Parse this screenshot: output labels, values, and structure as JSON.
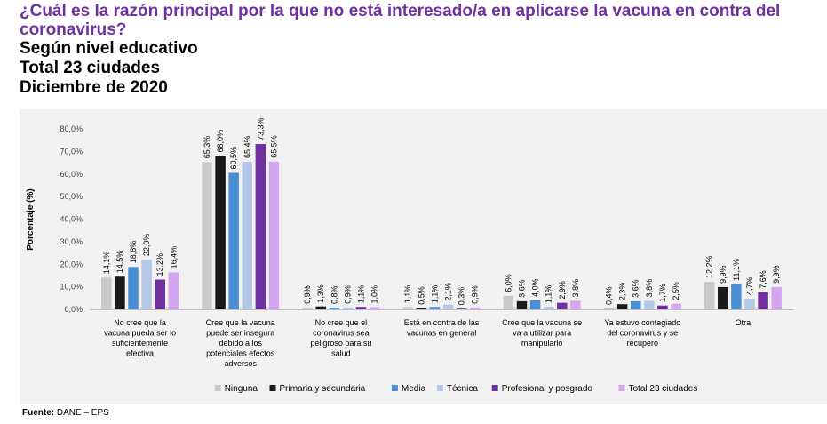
{
  "header": {
    "title": "¿Cuál es la razón principal por la que no está interesado/a en aplicarse la vacuna en contra del coronavirus?",
    "subtitle_lines": [
      "Según nivel educativo",
      "Total 23 ciudades",
      "Diciembre de 2020"
    ]
  },
  "footer": {
    "source_label": "Fuente:",
    "source_value": "DANE – EPS"
  },
  "chart_data": {
    "type": "bar",
    "ylabel": "Porcentaje (%)",
    "ylim": [
      0,
      80
    ],
    "yticks": [
      "0,0%",
      "10,0%",
      "20,0%",
      "30,0%",
      "40,0%",
      "50,0%",
      "60,0%",
      "70,0%",
      "80,0%"
    ],
    "grid": false,
    "legend_position": "bottom",
    "categories": [
      [
        "No cree que la",
        "vacuna pueda ser lo",
        "suficientemente",
        "efectiva"
      ],
      [
        "Cree que la vacuna",
        "puede ser insegura",
        "debido a los",
        "potenciales efectos",
        "adversos"
      ],
      [
        "No cree que el",
        "coronavirus sea",
        "peligroso para su",
        "salud"
      ],
      [
        "Está en contra de las",
        "vacunas en general"
      ],
      [
        "Cree que la vacuna se",
        "va a utilizar para",
        "manipularlo"
      ],
      [
        "Ya estuvo contagiado",
        "del coronavirus y se",
        "recuperó"
      ],
      [
        "Otra"
      ]
    ],
    "series": [
      {
        "name": "Ninguna",
        "color": "#c9c9c9",
        "values": [
          14.1,
          65.3,
          0.9,
          1.1,
          6.0,
          0.4,
          12.2
        ],
        "labels": [
          "14,1%",
          "65,3%",
          "0,9%",
          "1,1%",
          "6,0%",
          "0,4%",
          "12,2%"
        ]
      },
      {
        "name": "Primaria y secundaria",
        "color": "#1a1a1a",
        "values": [
          14.5,
          68.0,
          1.3,
          0.5,
          3.6,
          2.3,
          9.9
        ],
        "labels": [
          "14,5%",
          "68,0%",
          "1,3%",
          "0,5%",
          "3,6%",
          "2,3%",
          "9,9%"
        ]
      },
      {
        "name": "Media",
        "color": "#4a8fd4",
        "values": [
          18.8,
          60.5,
          0.8,
          1.1,
          4.0,
          3.6,
          11.1
        ],
        "labels": [
          "18,8%",
          "60,5%",
          "0,8%",
          "1,1%",
          "4,0%",
          "3,6%",
          "11,1%"
        ]
      },
      {
        "name": "Técnica",
        "color": "#b4c7e7",
        "values": [
          22.0,
          65.4,
          0.9,
          2.1,
          1.1,
          3.8,
          4.7
        ],
        "labels": [
          "22,0%",
          "65,4%",
          "0,9%",
          "2,1%",
          "1,1%",
          "3,8%",
          "4,7%"
        ]
      },
      {
        "name": "Profesional y posgrado",
        "color": "#7030a0",
        "values": [
          13.2,
          73.3,
          1.1,
          0.3,
          2.9,
          1.7,
          7.6
        ],
        "labels": [
          "13,2%",
          "73,3%",
          "1,1%",
          "0,3%",
          "2,9%",
          "1,7%",
          "7,6%"
        ]
      },
      {
        "name": "Total 23 ciudades",
        "color": "#d5a6f0",
        "values": [
          16.4,
          65.5,
          1.0,
          0.9,
          3.8,
          2.5,
          9.9
        ],
        "labels": [
          "16,4%",
          "65,5%",
          "1,0%",
          "0,9%",
          "3,8%",
          "2,5%",
          "9,9%"
        ]
      }
    ]
  }
}
